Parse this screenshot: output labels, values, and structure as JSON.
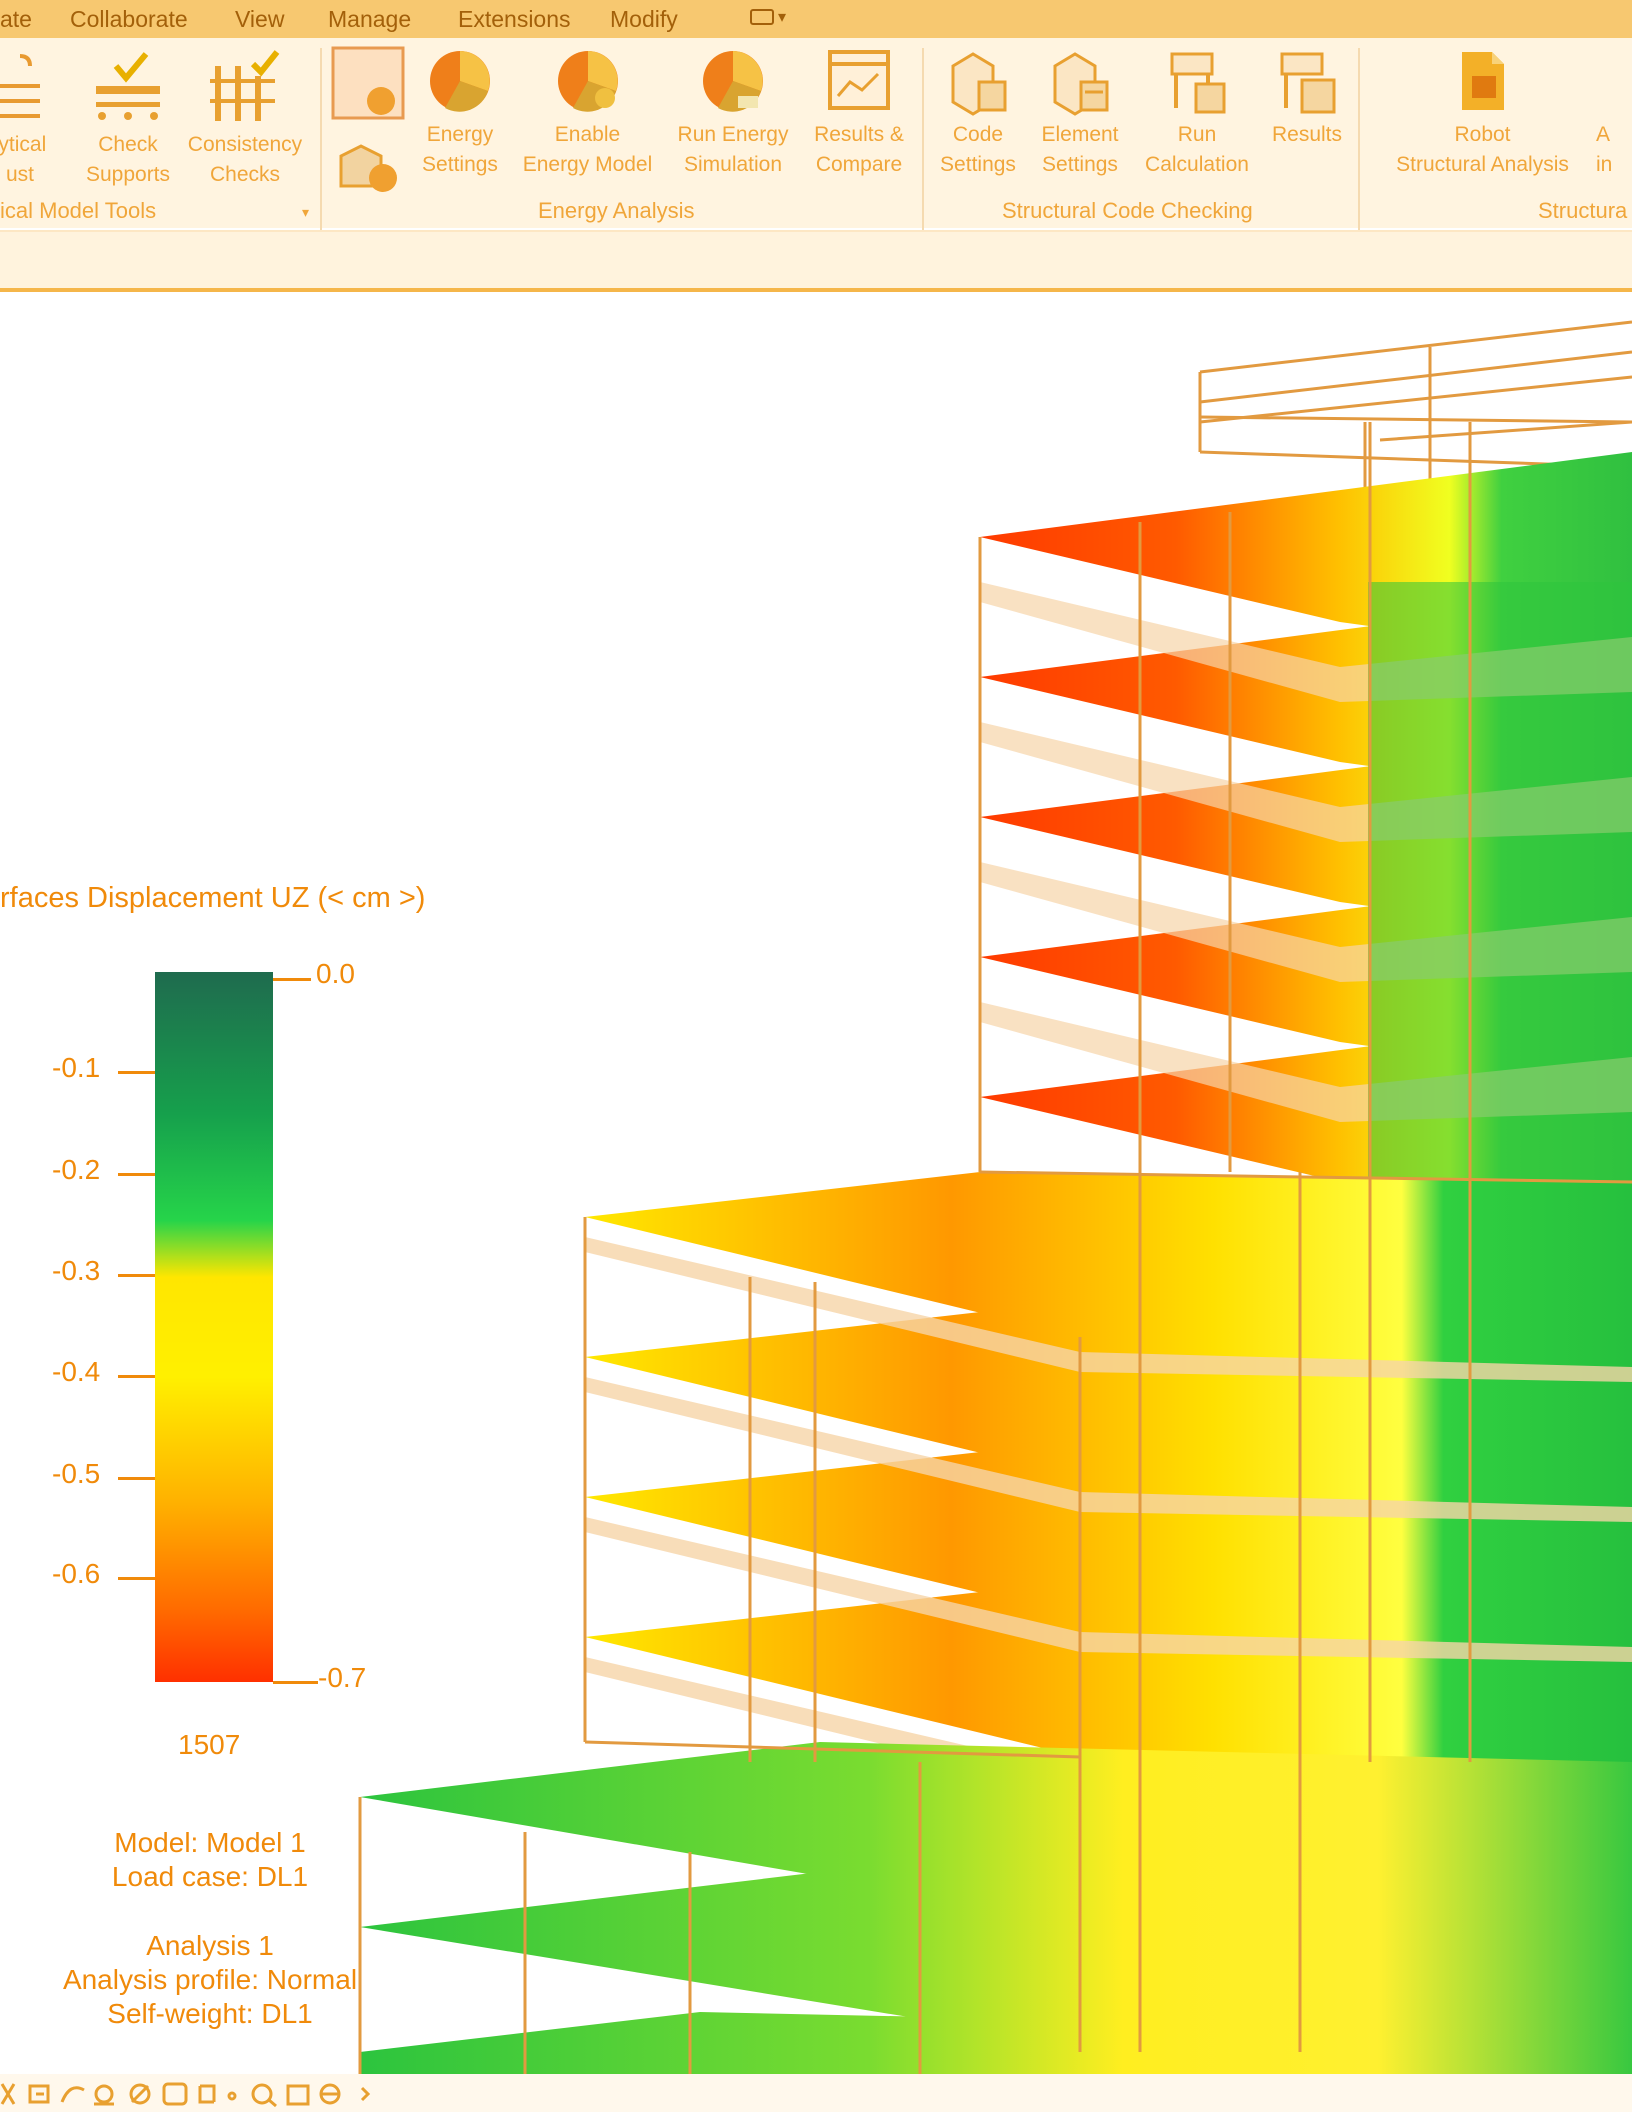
{
  "menu": {
    "items": [
      "ate",
      "Collaborate",
      "View",
      "Manage",
      "Extensions",
      "Modify"
    ]
  },
  "ribbon": {
    "buttons": [
      {
        "name": "adjust-analytical-button",
        "line1": "lytical",
        "line2": "ust",
        "icon": "analytical-adjust-icon"
      },
      {
        "name": "check-supports-button",
        "line1": "Check",
        "line2": "Supports",
        "icon": "check-supports-icon"
      },
      {
        "name": "consistency-checks-button",
        "line1": "Consistency",
        "line2": "Checks",
        "icon": "consistency-checks-icon"
      },
      {
        "name": "energy-settings-button",
        "line1": "Energy",
        "line2": "Settings",
        "icon": "energy-settings-icon"
      },
      {
        "name": "enable-energy-model-button",
        "line1": "Enable",
        "line2": "Energy Model",
        "icon": "enable-energy-model-icon"
      },
      {
        "name": "run-energy-simulation-button",
        "line1": "Run Energy",
        "line2": "Simulation",
        "icon": "run-energy-simulation-icon"
      },
      {
        "name": "results-compare-button",
        "line1": "Results &",
        "line2": "Compare",
        "icon": "results-compare-icon"
      },
      {
        "name": "code-settings-button",
        "line1": "Code",
        "line2": "Settings",
        "icon": "code-settings-icon"
      },
      {
        "name": "element-settings-button",
        "line1": "Element",
        "line2": "Settings",
        "icon": "element-settings-icon"
      },
      {
        "name": "run-calculation-button",
        "line1": "Run",
        "line2": "Calculation",
        "icon": "run-calculation-icon"
      },
      {
        "name": "results-button",
        "line1": "Results",
        "line2": "",
        "icon": "results-icon"
      },
      {
        "name": "robot-structural-analysis-button",
        "line1": "Robot",
        "line2": "Structural Analysis",
        "icon": "robot-structural-analysis-icon"
      },
      {
        "name": "a-in-button",
        "line1": "A",
        "line2": "in",
        "icon": ""
      }
    ],
    "panels": [
      "ical Model Tools",
      "Energy Analysis",
      "Structural Code Checking",
      "Structura"
    ]
  },
  "legend": {
    "title": "rfaces Displacement UZ (< cm >)",
    "top_label": "0.0",
    "bottom_label": "-0.7",
    "ticks": [
      "-0.1",
      "-0.2",
      "-0.3",
      "-0.4",
      "-0.5",
      "-0.6"
    ],
    "count": "1507"
  },
  "info": {
    "model": "Model: Model 1",
    "load_case": "Load case: DL1",
    "analysis": "Analysis 1",
    "profile": "Analysis profile: Normal",
    "self_weight": "Self-weight: DL1"
  },
  "colors": {
    "accent": "#f08a0a",
    "menubar": "#f7c870",
    "displacement_max": "#ff3000",
    "displacement_mid": "#fff000",
    "displacement_zero": "#1f6b4e"
  }
}
